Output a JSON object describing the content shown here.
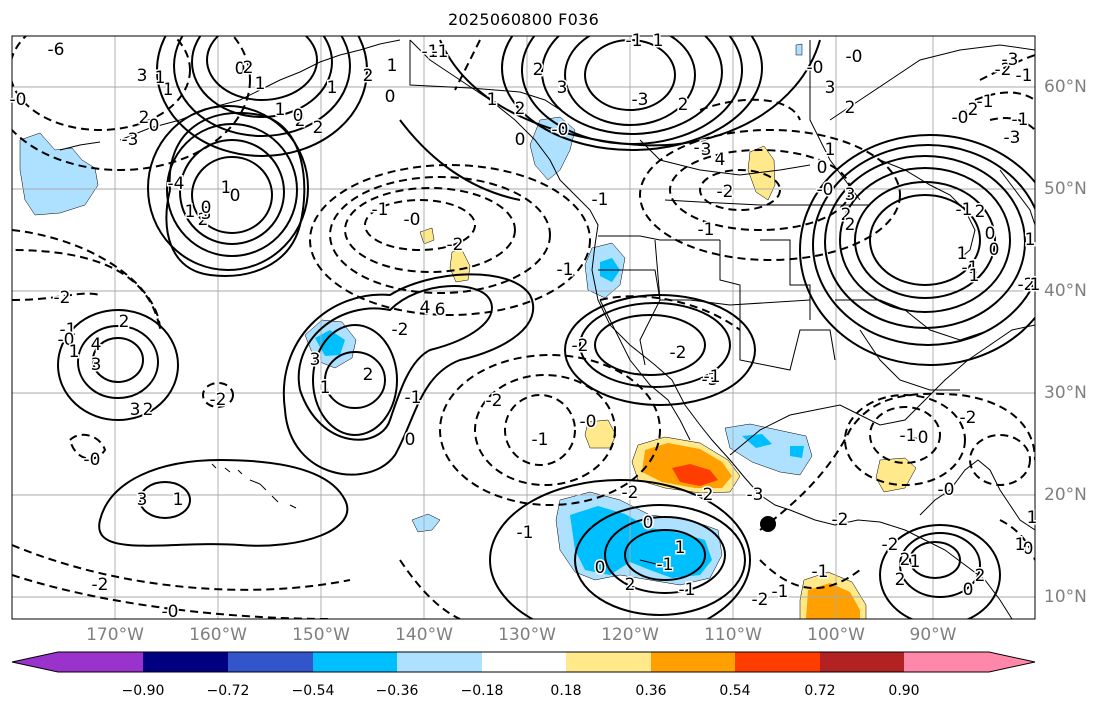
{
  "title": "2025060800 F036",
  "lon_labels": [
    "170°W",
    "160°W",
    "150°W",
    "140°W",
    "130°W",
    "120°W",
    "110°W",
    "100°W",
    "90°W"
  ],
  "lat_labels": [
    "60°N",
    "50°N",
    "40°N",
    "30°N",
    "20°N",
    "10°N"
  ],
  "colorbar": {
    "ticks": [
      "−0.90",
      "−0.72",
      "−0.54",
      "−0.36",
      "−0.18",
      "0.18",
      "0.36",
      "0.54",
      "0.72",
      "0.90"
    ],
    "colors": [
      "#9933cc",
      "#000080",
      "#3355cc",
      "#00bfff",
      "#aee0ff",
      "#ffffff",
      "#ffe98a",
      "#ffa000",
      "#ff3d00",
      "#b22222",
      "#ff88aa"
    ]
  },
  "fill_colors": {
    "light_blue": "#aee0ff",
    "blue": "#00bfff",
    "yellow": "#ffe98a",
    "orange": "#ffa000",
    "red": "#ff3d00"
  },
  "contour_labels": [
    "-6",
    "-1",
    "-0",
    "-3",
    "-2",
    "-4",
    "-1",
    "-0",
    "-1",
    "-2",
    "-1",
    "-0",
    "-2",
    "-1",
    "-0",
    "-1",
    "-2",
    "-2",
    "-0",
    "-2",
    "-0",
    "-1",
    "-1",
    "-0",
    "-2",
    "-1",
    "-2",
    "-0",
    "-2",
    "-0",
    "-1",
    "-0",
    "-0",
    "-2",
    "-1",
    "-2",
    "-0",
    "-1",
    "-2",
    "-3",
    "-1",
    "-1",
    "-2",
    "-3",
    "-1",
    "-1",
    "-2",
    "-3",
    "-2",
    "-1",
    "-0",
    "-2",
    "-1",
    "-1",
    "-2",
    "-3",
    "-1",
    "-2",
    "-3",
    "-0",
    "-1",
    "-2",
    "-1",
    "0",
    "1",
    "2",
    "3",
    "4",
    "6",
    "3",
    "2",
    "1",
    "3",
    "4",
    "3",
    "2",
    "1",
    "0",
    "2",
    "1",
    "0",
    "1",
    "2",
    "2",
    "0",
    "1",
    "2",
    "3",
    "1",
    "0",
    "1",
    "2",
    "3",
    "1",
    "0",
    "2",
    "1",
    "0",
    "1",
    "2",
    "3",
    "2",
    "1",
    "0",
    "1",
    "2",
    "3",
    "4",
    "3",
    "2",
    "1",
    "0",
    "2",
    "3",
    "2",
    "1",
    "1",
    "2",
    "0",
    "0",
    "1",
    "1",
    "2",
    "2",
    "1",
    "0",
    "1",
    "2",
    "1",
    "0",
    "1",
    "0",
    "2",
    "1"
  ]
}
